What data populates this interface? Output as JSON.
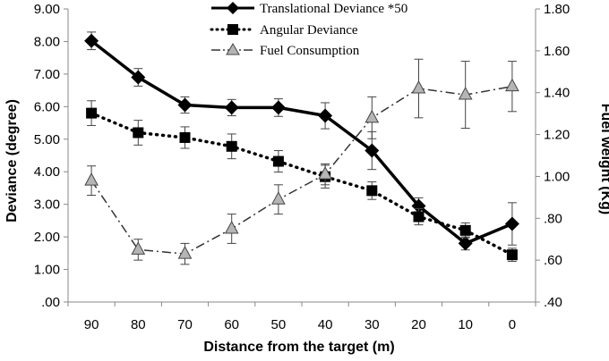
{
  "chart_data": {
    "type": "line",
    "x": [
      90,
      80,
      70,
      60,
      50,
      40,
      30,
      20,
      10,
      0
    ],
    "xlabel": "Distance  from the target (m)",
    "ylabel_left": "Deviance (degree)",
    "ylabel_right": "Fuel weight (Kg)",
    "ylim_left": [
      0,
      9
    ],
    "ylim_right": [
      0.4,
      1.8
    ],
    "left_ticks": [
      ".00",
      "1.00",
      "2.00",
      "3.00",
      "4.00",
      "5.00",
      "6.00",
      "7.00",
      "8.00",
      "9.00"
    ],
    "right_ticks": [
      ".40",
      ".60",
      ".80",
      "1.00",
      "1.20",
      "1.40",
      "1.60",
      "1.80"
    ],
    "series": [
      {
        "name": "Translational Deviance *50",
        "axis": "left",
        "style": "solid",
        "marker": "diamond",
        "values": [
          8.02,
          6.9,
          6.05,
          5.97,
          5.97,
          5.72,
          4.65,
          2.95,
          1.8,
          2.4
        ],
        "errors": [
          0.27,
          0.27,
          0.25,
          0.25,
          0.27,
          0.4,
          0.58,
          0.25,
          0.2,
          0.65
        ]
      },
      {
        "name": "Angular Deviance",
        "axis": "left",
        "style": "dotted",
        "marker": "square",
        "values": [
          5.8,
          5.2,
          5.05,
          4.78,
          4.32,
          3.85,
          3.42,
          2.62,
          2.2,
          1.45
        ],
        "errors": [
          0.38,
          0.38,
          0.33,
          0.38,
          0.33,
          0.35,
          0.27,
          0.25,
          0.23,
          0.2
        ]
      },
      {
        "name": "Fuel Consumption",
        "axis": "right",
        "style": "dashdot",
        "marker": "triangle",
        "values": [
          0.98,
          0.65,
          0.63,
          0.75,
          0.89,
          1.01,
          1.28,
          1.42,
          1.39,
          1.43
        ],
        "errors": [
          0.07,
          0.05,
          0.05,
          0.07,
          0.07,
          0.05,
          0.1,
          0.14,
          0.16,
          0.12
        ]
      }
    ]
  }
}
